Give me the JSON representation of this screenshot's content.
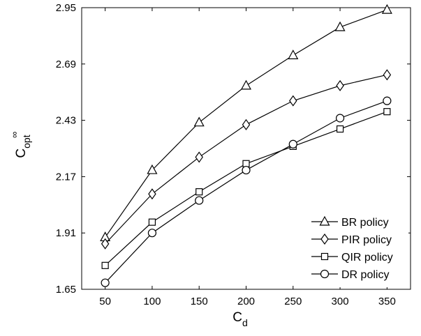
{
  "chart_data": {
    "type": "line",
    "title": "",
    "xlabel": "C",
    "xlabel_sub": "d",
    "ylabel": "C",
    "ylabel_sup": "∞",
    "ylabel_sub": "opt",
    "xlim": [
      25,
      375
    ],
    "ylim": [
      1.65,
      2.95
    ],
    "xticks": [
      "50",
      "100",
      "150",
      "200",
      "250",
      "300",
      "350"
    ],
    "yticks": [
      "1.65",
      "1.91",
      "2.17",
      "2.43",
      "2.69",
      "2.95"
    ],
    "grid": false,
    "legend_position": "bottom-right",
    "x": [
      50,
      100,
      150,
      200,
      250,
      300,
      350
    ],
    "series": [
      {
        "name": "BR policy",
        "marker": "triangle",
        "values": [
          1.89,
          2.2,
          2.42,
          2.59,
          2.73,
          2.86,
          2.94
        ]
      },
      {
        "name": "PIR policy",
        "marker": "diamond",
        "values": [
          1.86,
          2.09,
          2.26,
          2.41,
          2.52,
          2.59,
          2.64
        ]
      },
      {
        "name": "QIR policy",
        "marker": "square",
        "values": [
          1.76,
          1.96,
          2.1,
          2.23,
          2.31,
          2.39,
          2.47
        ]
      },
      {
        "name": "DR policy",
        "marker": "circle",
        "values": [
          1.68,
          1.91,
          2.06,
          2.2,
          2.32,
          2.44,
          2.52
        ]
      }
    ],
    "colors": {
      "line": "#000000",
      "marker_fill": "#ffffff",
      "background": "#ffffff"
    }
  }
}
